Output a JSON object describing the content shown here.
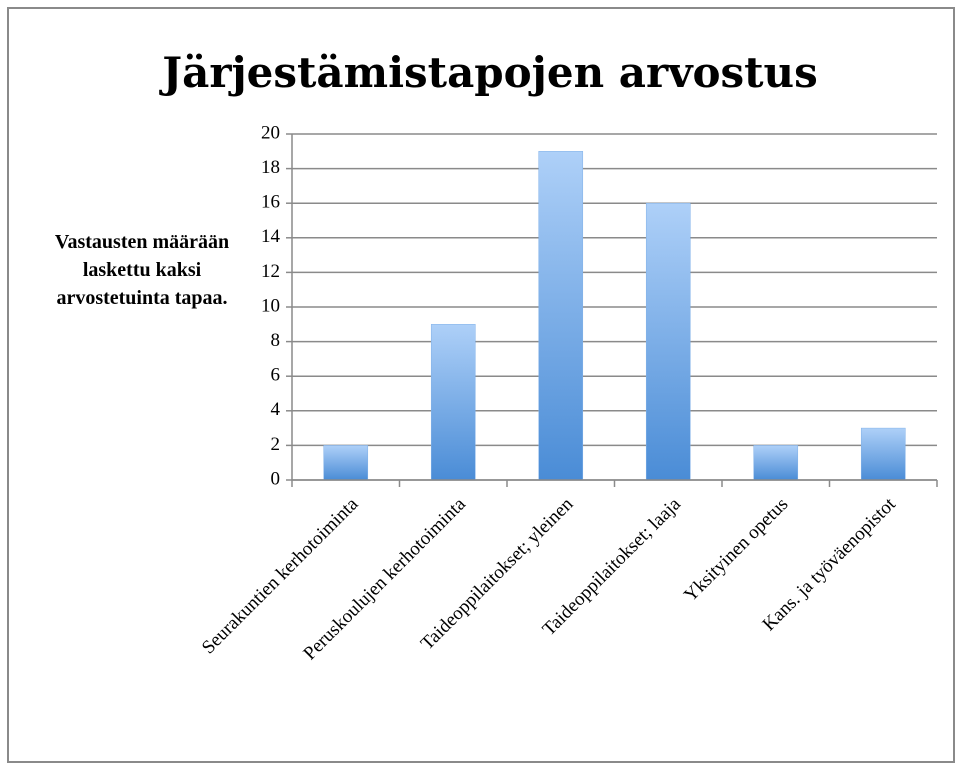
{
  "chart_data": {
    "type": "bar",
    "title": "Järjestämistapojen arvostus",
    "ylabel": "Vastausten määrään laskettu kaksi arvostetuinta tapaa.",
    "categories": [
      "Seurakuntien kerhotoiminta",
      "Peruskoulujen kerhotoiminta",
      "Taideoppilaitokset; yleinen",
      "Taideoppilaitokset; laaja",
      "Yksityinen opetus",
      "Kans. ja työväenopistot"
    ],
    "values": [
      2,
      9,
      19,
      16,
      2,
      3
    ],
    "color": "#5b9bde",
    "ylim": [
      0,
      20
    ],
    "yticks": [
      0,
      2,
      4,
      6,
      8,
      10,
      12,
      14,
      16,
      18,
      20
    ],
    "grid": true
  }
}
